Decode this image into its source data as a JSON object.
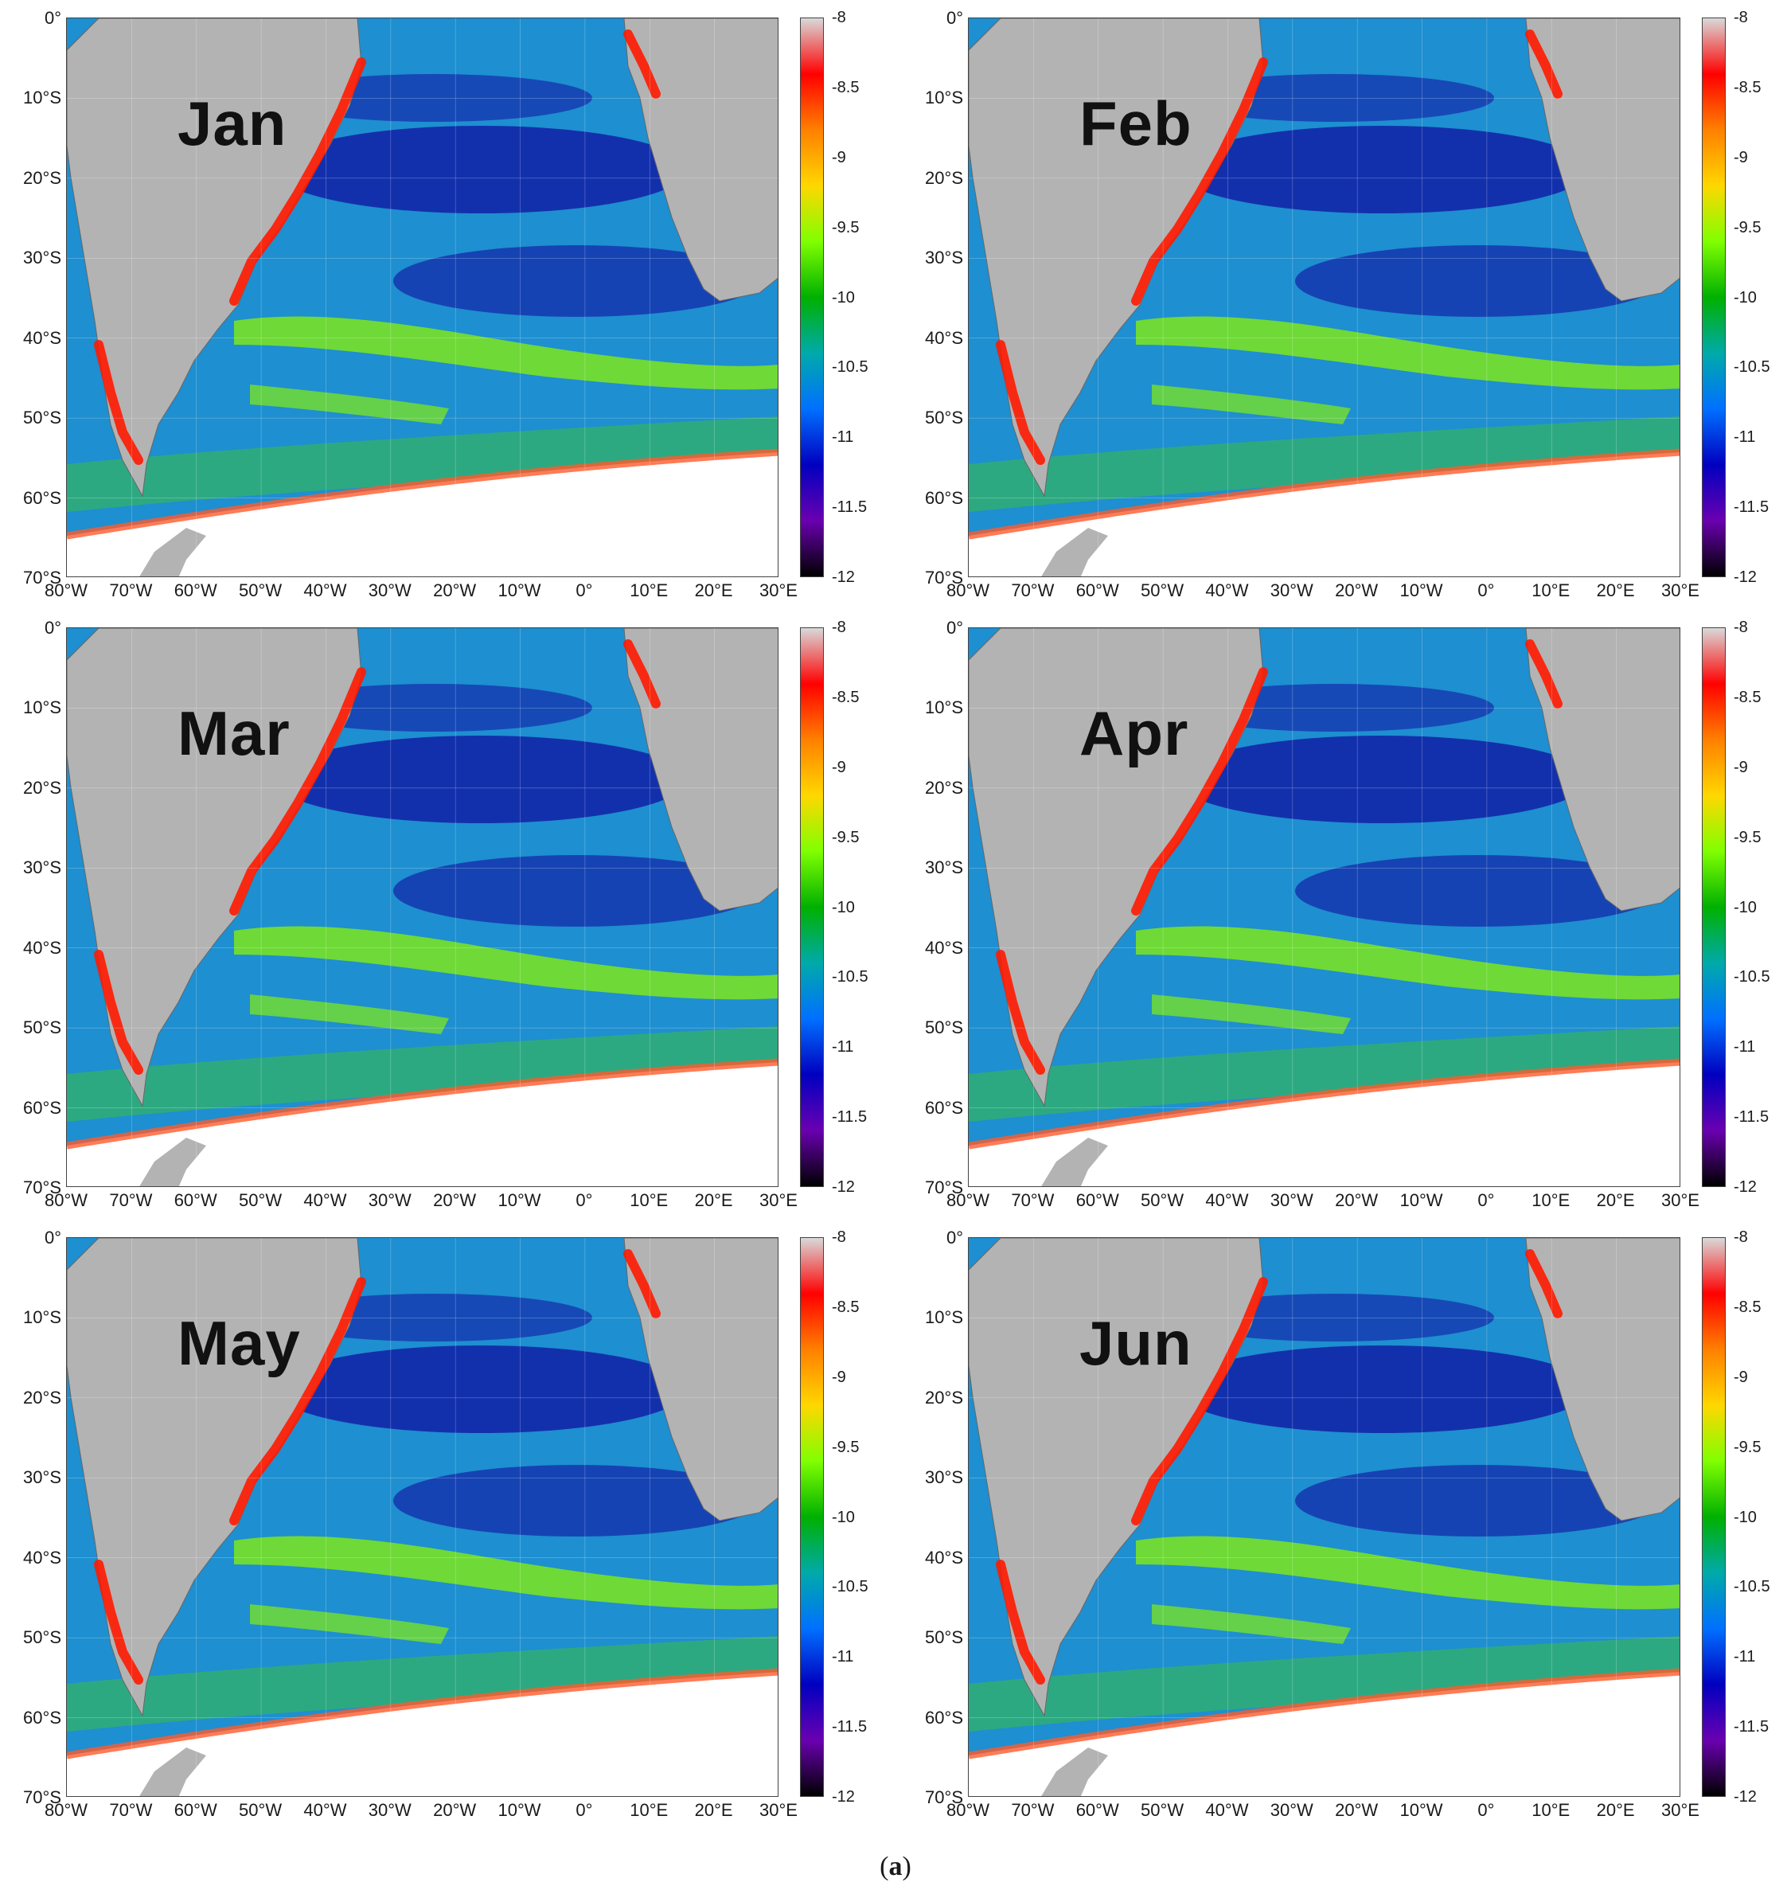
{
  "figure": {
    "caption_open": "(",
    "caption_letter": "a",
    "caption_close": ")"
  },
  "latitude_labels": [
    "0°",
    "10°S",
    "20°S",
    "30°S",
    "40°S",
    "50°S",
    "60°S",
    "70°S"
  ],
  "longitude_labels": [
    "80°W",
    "70°W",
    "60°W",
    "50°W",
    "40°W",
    "30°W",
    "20°W",
    "10°W",
    "0°",
    "10°E",
    "20°E",
    "30°E"
  ],
  "colorbar": {
    "ticks": [
      "-8",
      "-8.5",
      "-9",
      "-9.5",
      "-10",
      "-10.5",
      "-11",
      "-11.5",
      "-12"
    ],
    "colors": [
      "#d9d9d9",
      "#ff0000",
      "#ff8000",
      "#ffd700",
      "#80ff00",
      "#00b000",
      "#00aaaa",
      "#0070ff",
      "#0000c0",
      "#6a00b0",
      "#000000"
    ]
  },
  "panels": [
    {
      "month": "Jan"
    },
    {
      "month": "Feb"
    },
    {
      "month": "Mar"
    },
    {
      "month": "Apr"
    },
    {
      "month": "May"
    },
    {
      "month": "Jun"
    }
  ],
  "colors": {
    "land": "#b3b3b3",
    "ice": "#ffffff",
    "ocean_base": "#1e8fd0",
    "open_ocean_low": "#1010a0",
    "band_high": "#7ee61c",
    "coast_high": "#ff1a00"
  }
}
